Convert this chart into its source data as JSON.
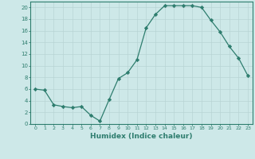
{
  "x": [
    0,
    1,
    2,
    3,
    4,
    5,
    6,
    7,
    8,
    9,
    10,
    11,
    12,
    13,
    14,
    15,
    16,
    17,
    18,
    19,
    20,
    21,
    22,
    23
  ],
  "y": [
    6,
    5.8,
    3.3,
    3,
    2.8,
    3,
    1.5,
    0.5,
    4.2,
    7.8,
    8.8,
    11,
    16.5,
    18.8,
    20.3,
    20.3,
    20.3,
    20.3,
    20,
    17.8,
    15.8,
    13.3,
    11.3,
    8.3
  ],
  "line_color": "#2e7d6e",
  "marker": "D",
  "marker_size": 2.2,
  "bg_color": "#cde8e8",
  "grid_color": "#b8d4d4",
  "xlabel": "Humidex (Indice chaleur)",
  "xlim": [
    -0.5,
    23.5
  ],
  "ylim": [
    0,
    21
  ],
  "yticks": [
    0,
    2,
    4,
    6,
    8,
    10,
    12,
    14,
    16,
    18,
    20
  ],
  "xticks": [
    0,
    1,
    2,
    3,
    4,
    5,
    6,
    7,
    8,
    9,
    10,
    11,
    12,
    13,
    14,
    15,
    16,
    17,
    18,
    19,
    20,
    21,
    22,
    23
  ]
}
